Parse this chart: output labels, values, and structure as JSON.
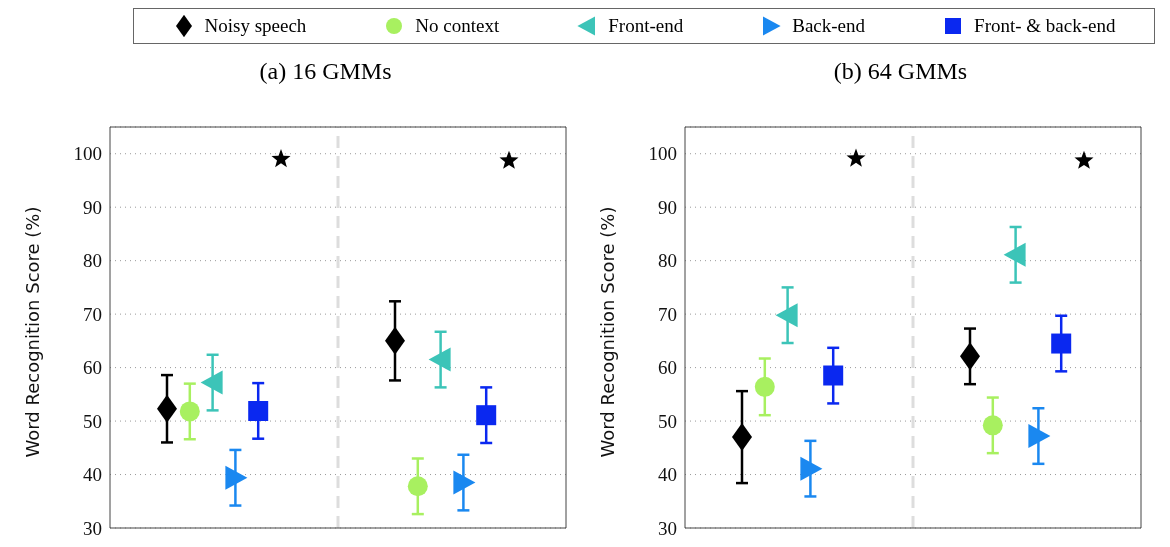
{
  "chart_data": [
    {
      "type": "scatter",
      "title": "(a) 16 GMMs",
      "ylabel": "Word Recognition Score (%)",
      "categories": [
        null,
        null
      ],
      "ylim": [
        30,
        105
      ],
      "yticks": [
        30,
        40,
        50,
        60,
        70,
        80,
        90,
        100
      ],
      "tick_labels": "y",
      "grid": "y",
      "legend": "top",
      "series": [
        {
          "name": "Noisy speech",
          "color": "#000000",
          "marker": "diamond",
          "values": [
            52.3,
            65.0
          ],
          "errors": [
            6.3,
            7.4
          ]
        },
        {
          "name": "No context",
          "color": "#a8f060",
          "marker": "circle",
          "values": [
            51.8,
            37.8
          ],
          "errors": [
            5.2,
            5.2
          ]
        },
        {
          "name": "Front-end",
          "color": "#3cc4b8",
          "marker": "triangle-left",
          "values": [
            57.2,
            61.5
          ],
          "errors": [
            5.2,
            5.2
          ]
        },
        {
          "name": "Back-end",
          "color": "#1a88f0",
          "marker": "triangle-right",
          "values": [
            39.4,
            38.5
          ],
          "errors": [
            5.2,
            5.2
          ]
        },
        {
          "name": "Front- & back-end",
          "color": "#0a28f0",
          "marker": "square",
          "values": [
            51.9,
            51.1
          ],
          "errors": [
            5.2,
            5.2
          ]
        },
        {
          "color": "#000000",
          "marker": "star",
          "values": [
            99.0,
            98.7
          ]
        }
      ]
    },
    {
      "type": "scatter",
      "title": "(b) 64 GMMs",
      "ylabel": "Word Recognition Score (%)",
      "categories": [
        null,
        null
      ],
      "ylim": [
        30,
        105
      ],
      "yticks": [
        30,
        40,
        50,
        60,
        70,
        80,
        90,
        100
      ],
      "tick_labels": "y",
      "grid": "y",
      "series": [
        {
          "color": "#000000",
          "marker": "diamond",
          "values": [
            47.0,
            62.1
          ],
          "errors": [
            8.6,
            5.2
          ]
        },
        {
          "color": "#a8f060",
          "marker": "circle",
          "values": [
            56.4,
            49.2
          ],
          "errors": [
            5.3,
            5.2
          ]
        },
        {
          "color": "#3cc4b8",
          "marker": "triangle-left",
          "values": [
            69.8,
            81.1
          ],
          "errors": [
            5.2,
            5.2
          ]
        },
        {
          "color": "#1a88f0",
          "marker": "triangle-right",
          "values": [
            41.1,
            47.2
          ],
          "errors": [
            5.2,
            5.2
          ]
        },
        {
          "color": "#0a28f0",
          "marker": "square",
          "values": [
            58.5,
            64.5
          ],
          "errors": [
            5.2,
            5.2
          ]
        },
        {
          "color": "#000000",
          "marker": "star",
          "values": [
            99.1,
            98.7
          ]
        }
      ]
    }
  ]
}
